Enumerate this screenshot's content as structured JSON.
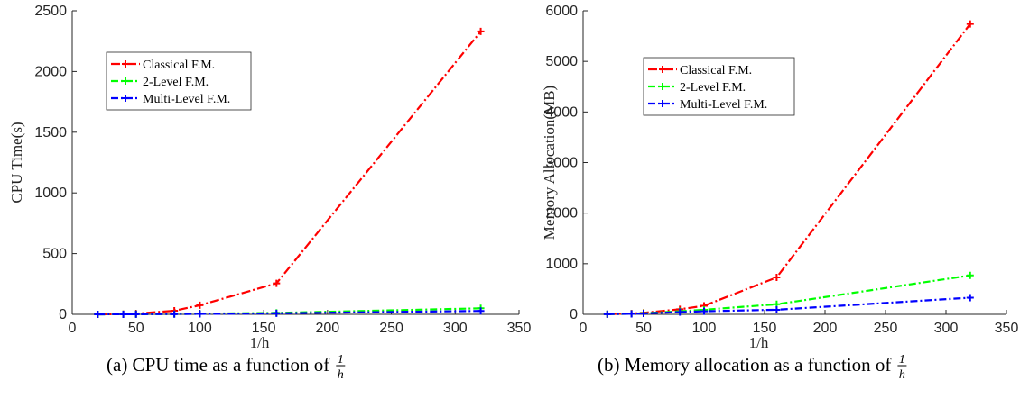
{
  "chart_data": [
    {
      "type": "line",
      "title": "",
      "caption": "(a) CPU time as a function of",
      "caption_fraction": {
        "numerator": "1",
        "denominator": "h"
      },
      "xlabel": "1/h",
      "ylabel": "CPU Time(s)",
      "xlim": [
        0,
        350
      ],
      "ylim": [
        0,
        2500
      ],
      "xticks": [
        0,
        50,
        100,
        150,
        200,
        250,
        300,
        350
      ],
      "yticks": [
        0,
        500,
        1000,
        1500,
        2000,
        2500
      ],
      "grid": false,
      "legend": "upper-left",
      "x": [
        20,
        40,
        50,
        80,
        100,
        160,
        320
      ],
      "series": [
        {
          "name": "Classical F.M.",
          "color": "#ff0000",
          "values": [
            0.2,
            2,
            5,
            30,
            75,
            255,
            2330
          ]
        },
        {
          "name": "2-Level F.M.",
          "color": "#00ff00",
          "values": [
            0.1,
            0.5,
            1,
            3,
            5,
            12,
            50
          ]
        },
        {
          "name": "Multi-Level F.M.",
          "color": "#0000ff",
          "values": [
            0.1,
            0.4,
            0.8,
            2,
            4,
            8,
            28
          ]
        }
      ]
    },
    {
      "type": "line",
      "title": "",
      "caption": "(b) Memory allocation as a function of",
      "caption_fraction": {
        "numerator": "1",
        "denominator": "h"
      },
      "xlabel": "1/h",
      "ylabel": "Memory Allocation(MB)",
      "xlim": [
        0,
        350
      ],
      "ylim": [
        0,
        6000
      ],
      "xticks": [
        0,
        50,
        100,
        150,
        200,
        250,
        300,
        350
      ],
      "yticks": [
        0,
        1000,
        2000,
        3000,
        4000,
        5000,
        6000
      ],
      "grid": false,
      "legend": "upper-left",
      "x": [
        20,
        40,
        50,
        80,
        100,
        160,
        320
      ],
      "series": [
        {
          "name": "Classical F.M.",
          "color": "#ff0000",
          "values": [
            5,
            15,
            30,
            100,
            170,
            730,
            5740
          ]
        },
        {
          "name": "2-Level F.M.",
          "color": "#00ff00",
          "values": [
            4,
            12,
            22,
            60,
            90,
            200,
            770
          ]
        },
        {
          "name": "Multi-Level F.M.",
          "color": "#0000ff",
          "values": [
            3,
            10,
            18,
            45,
            60,
            90,
            330
          ]
        }
      ]
    }
  ]
}
